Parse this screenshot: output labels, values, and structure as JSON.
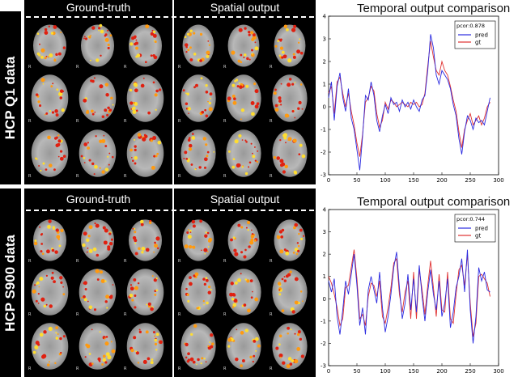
{
  "panels": [
    {
      "id": "q1",
      "row_label": "HCP Q1 data",
      "ground_truth_label": "Ground-truth",
      "spatial_label": "Spatial output",
      "chart_title": "Temporal output comparison",
      "pcor_label": "pcor:0.878",
      "legend": [
        {
          "name": "pred",
          "color": "#2a2ae0"
        },
        {
          "name": "gt",
          "color": "#e03030"
        }
      ]
    },
    {
      "id": "s900",
      "row_label": "HCP S900 data",
      "ground_truth_label": "Ground-truth",
      "spatial_label": "Spatial output",
      "chart_title": "Temporal output comparison",
      "pcor_label": "pcor:0.744",
      "legend": [
        {
          "name": "pred",
          "color": "#2a2ae0"
        },
        {
          "name": "gt",
          "color": "#e03030"
        }
      ]
    }
  ],
  "slice_marker": "R",
  "chart_data": [
    {
      "type": "line",
      "xlim": [
        0,
        300
      ],
      "ylim": [
        -3,
        4
      ],
      "xticks": [
        0,
        50,
        100,
        150,
        200,
        250,
        300
      ],
      "yticks": [
        -3,
        -2,
        -1,
        0,
        1,
        2,
        3,
        4
      ],
      "legend_position": "top-right",
      "series": [
        {
          "name": "pred",
          "color": "#2a2ae0",
          "points": [
            [
              0,
              0.4
            ],
            [
              5,
              1.1
            ],
            [
              10,
              -0.6
            ],
            [
              15,
              0.9
            ],
            [
              20,
              1.5
            ],
            [
              25,
              0.4
            ],
            [
              30,
              -0.2
            ],
            [
              35,
              0.8
            ],
            [
              40,
              -0.5
            ],
            [
              45,
              -1.0
            ],
            [
              50,
              -1.9
            ],
            [
              55,
              -2.8
            ],
            [
              60,
              -1.3
            ],
            [
              65,
              0.5
            ],
            [
              70,
              0.3
            ],
            [
              75,
              1.1
            ],
            [
              80,
              0.5
            ],
            [
              85,
              -0.6
            ],
            [
              90,
              -1.1
            ],
            [
              95,
              -0.4
            ],
            [
              100,
              0.1
            ],
            [
              105,
              -0.3
            ],
            [
              110,
              0.4
            ],
            [
              115,
              0.1
            ],
            [
              120,
              0.2
            ],
            [
              125,
              -0.2
            ],
            [
              130,
              0.3
            ],
            [
              135,
              0.0
            ],
            [
              140,
              0.2
            ],
            [
              145,
              -0.1
            ],
            [
              150,
              0.3
            ],
            [
              155,
              0.0
            ],
            [
              160,
              -0.2
            ],
            [
              165,
              0.3
            ],
            [
              170,
              0.5
            ],
            [
              175,
              1.6
            ],
            [
              180,
              3.2
            ],
            [
              185,
              2.6
            ],
            [
              190,
              1.4
            ],
            [
              195,
              1.0
            ],
            [
              200,
              1.6
            ],
            [
              205,
              1.4
            ],
            [
              210,
              1.2
            ],
            [
              215,
              0.8
            ],
            [
              220,
              0.1
            ],
            [
              225,
              -0.4
            ],
            [
              230,
              -1.4
            ],
            [
              235,
              -2.1
            ],
            [
              240,
              -1.1
            ],
            [
              245,
              -0.4
            ],
            [
              250,
              -0.6
            ],
            [
              255,
              -1.0
            ],
            [
              260,
              -0.5
            ],
            [
              265,
              -0.7
            ],
            [
              270,
              -0.6
            ],
            [
              275,
              -0.8
            ],
            [
              280,
              -0.2
            ],
            [
              285,
              0.4
            ]
          ]
        },
        {
          "name": "gt",
          "color": "#e03030",
          "points": [
            [
              0,
              0.6
            ],
            [
              5,
              0.9
            ],
            [
              10,
              -0.3
            ],
            [
              15,
              1.1
            ],
            [
              20,
              1.3
            ],
            [
              25,
              0.6
            ],
            [
              30,
              0.0
            ],
            [
              35,
              0.6
            ],
            [
              40,
              -0.2
            ],
            [
              45,
              -0.8
            ],
            [
              50,
              -1.6
            ],
            [
              55,
              -2.2
            ],
            [
              60,
              -1.2
            ],
            [
              65,
              0.2
            ],
            [
              70,
              0.4
            ],
            [
              75,
              0.9
            ],
            [
              80,
              0.7
            ],
            [
              85,
              -0.3
            ],
            [
              90,
              -0.9
            ],
            [
              95,
              -0.6
            ],
            [
              100,
              0.2
            ],
            [
              105,
              -0.1
            ],
            [
              110,
              0.3
            ],
            [
              115,
              0.2
            ],
            [
              120,
              0.0
            ],
            [
              125,
              0.1
            ],
            [
              130,
              0.2
            ],
            [
              135,
              0.1
            ],
            [
              140,
              0.0
            ],
            [
              145,
              0.2
            ],
            [
              150,
              0.1
            ],
            [
              155,
              0.2
            ],
            [
              160,
              0.0
            ],
            [
              165,
              0.1
            ],
            [
              170,
              0.6
            ],
            [
              175,
              1.8
            ],
            [
              180,
              2.9
            ],
            [
              185,
              2.2
            ],
            [
              190,
              1.6
            ],
            [
              195,
              1.4
            ],
            [
              200,
              2.0
            ],
            [
              205,
              1.6
            ],
            [
              210,
              1.4
            ],
            [
              215,
              0.9
            ],
            [
              220,
              0.3
            ],
            [
              225,
              -0.2
            ],
            [
              230,
              -1.1
            ],
            [
              235,
              -1.8
            ],
            [
              240,
              -1.0
            ],
            [
              245,
              -0.6
            ],
            [
              250,
              -0.3
            ],
            [
              255,
              -0.8
            ],
            [
              260,
              -0.6
            ],
            [
              265,
              -0.4
            ],
            [
              270,
              -0.8
            ],
            [
              275,
              -0.5
            ],
            [
              280,
              0.0
            ],
            [
              285,
              0.2
            ]
          ]
        }
      ]
    },
    {
      "type": "line",
      "xlim": [
        0,
        300
      ],
      "ylim": [
        -3,
        4
      ],
      "xticks": [
        0,
        50,
        100,
        150,
        200,
        250,
        300
      ],
      "yticks": [
        -3,
        -2,
        -1,
        0,
        1,
        2,
        3,
        4
      ],
      "legend_position": "top-right",
      "series": [
        {
          "name": "pred",
          "color": "#2a2ae0",
          "points": [
            [
              0,
              0.8
            ],
            [
              5,
              0.3
            ],
            [
              10,
              0.9
            ],
            [
              15,
              -0.8
            ],
            [
              20,
              -1.6
            ],
            [
              25,
              -0.5
            ],
            [
              30,
              0.8
            ],
            [
              35,
              0.2
            ],
            [
              40,
              1.1
            ],
            [
              45,
              2.0
            ],
            [
              50,
              0.6
            ],
            [
              55,
              -1.2
            ],
            [
              60,
              -0.4
            ],
            [
              65,
              -1.6
            ],
            [
              70,
              0.4
            ],
            [
              75,
              1.0
            ],
            [
              80,
              0.4
            ],
            [
              85,
              -0.2
            ],
            [
              90,
              1.2
            ],
            [
              95,
              -0.4
            ],
            [
              100,
              -1.5
            ],
            [
              105,
              -0.8
            ],
            [
              110,
              0.2
            ],
            [
              115,
              1.4
            ],
            [
              120,
              2.1
            ],
            [
              125,
              0.5
            ],
            [
              130,
              -0.9
            ],
            [
              135,
              -0.2
            ],
            [
              140,
              1.1
            ],
            [
              145,
              -0.5
            ],
            [
              150,
              0.9
            ],
            [
              155,
              -0.6
            ],
            [
              160,
              1.5
            ],
            [
              165,
              0.1
            ],
            [
              170,
              -1.0
            ],
            [
              175,
              0.3
            ],
            [
              180,
              1.3
            ],
            [
              185,
              0.2
            ],
            [
              190,
              -0.5
            ],
            [
              195,
              0.8
            ],
            [
              200,
              -0.8
            ],
            [
              205,
              -0.2
            ],
            [
              210,
              0.9
            ],
            [
              215,
              -1.3
            ],
            [
              220,
              -0.6
            ],
            [
              225,
              0.5
            ],
            [
              230,
              1.0
            ],
            [
              235,
              1.8
            ],
            [
              240,
              0.3
            ],
            [
              245,
              2.2
            ],
            [
              250,
              -0.5
            ],
            [
              255,
              -2.0
            ],
            [
              260,
              -0.8
            ],
            [
              265,
              1.4
            ],
            [
              270,
              0.8
            ],
            [
              275,
              1.2
            ],
            [
              280,
              0.4
            ],
            [
              285,
              0.3
            ]
          ]
        },
        {
          "name": "gt",
          "color": "#e03030",
          "points": [
            [
              0,
              1.0
            ],
            [
              5,
              0.7
            ],
            [
              10,
              0.2
            ],
            [
              15,
              -0.4
            ],
            [
              20,
              -1.2
            ],
            [
              25,
              -0.9
            ],
            [
              30,
              0.5
            ],
            [
              35,
              0.6
            ],
            [
              40,
              1.4
            ],
            [
              45,
              2.2
            ],
            [
              50,
              0.9
            ],
            [
              55,
              -0.9
            ],
            [
              60,
              -0.7
            ],
            [
              65,
              -1.2
            ],
            [
              70,
              0.1
            ],
            [
              75,
              0.7
            ],
            [
              80,
              0.6
            ],
            [
              85,
              0.1
            ],
            [
              90,
              0.8
            ],
            [
              95,
              -0.8
            ],
            [
              100,
              -1.1
            ],
            [
              105,
              -0.4
            ],
            [
              110,
              0.5
            ],
            [
              115,
              1.6
            ],
            [
              120,
              1.8
            ],
            [
              125,
              0.2
            ],
            [
              130,
              -0.6
            ],
            [
              135,
              0.3
            ],
            [
              140,
              0.8
            ],
            [
              145,
              -0.9
            ],
            [
              150,
              1.2
            ],
            [
              155,
              -0.9
            ],
            [
              160,
              1.3
            ],
            [
              165,
              0.4
            ],
            [
              170,
              -0.7
            ],
            [
              175,
              0.6
            ],
            [
              180,
              1.7
            ],
            [
              185,
              0.5
            ],
            [
              190,
              -0.8
            ],
            [
              195,
              1.1
            ],
            [
              200,
              -0.5
            ],
            [
              205,
              -0.6
            ],
            [
              210,
              1.2
            ],
            [
              215,
              -0.9
            ],
            [
              220,
              -1.1
            ],
            [
              225,
              0.2
            ],
            [
              230,
              1.3
            ],
            [
              235,
              1.5
            ],
            [
              240,
              0.6
            ],
            [
              245,
              2.0
            ],
            [
              250,
              -0.2
            ],
            [
              255,
              -1.7
            ],
            [
              260,
              -1.1
            ],
            [
              265,
              1.0
            ],
            [
              270,
              1.1
            ],
            [
              275,
              0.9
            ],
            [
              280,
              0.7
            ],
            [
              285,
              0.1
            ]
          ]
        }
      ]
    }
  ]
}
